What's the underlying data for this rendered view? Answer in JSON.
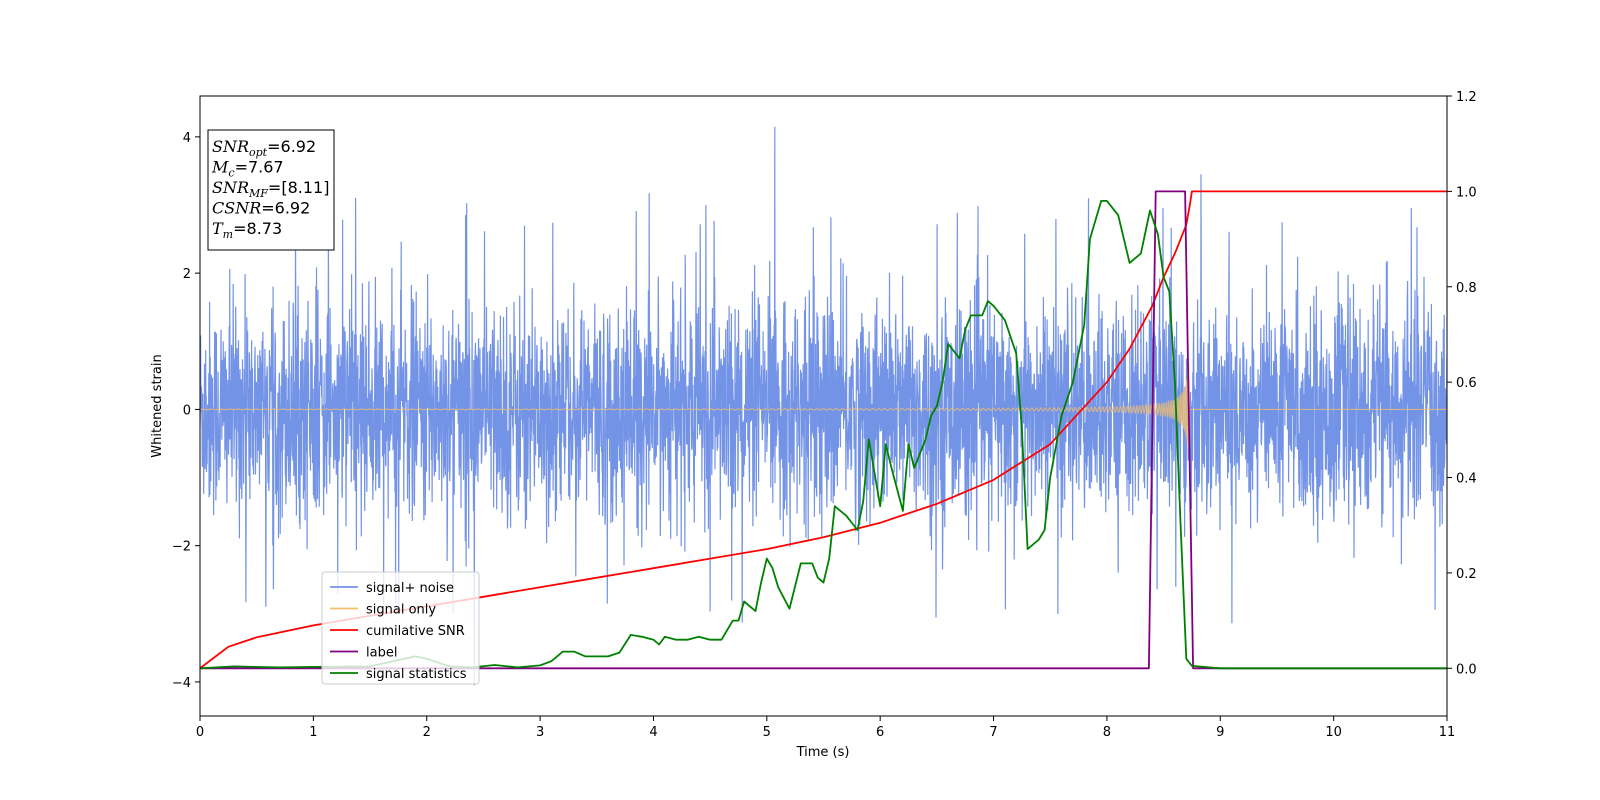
{
  "chart_data": {
    "type": "line",
    "title": "",
    "xlabel": "Time (s)",
    "ylabel": "Whitened strain",
    "y2label": "",
    "xlim": [
      0,
      11
    ],
    "ylim": [
      -4.5,
      4.6
    ],
    "y2lim": [
      -0.1,
      1.2
    ],
    "xticks": [
      "0",
      "1",
      "2",
      "3",
      "4",
      "5",
      "6",
      "7",
      "8",
      "9",
      "10",
      "11"
    ],
    "yticks": [
      "−4",
      "−2",
      "0",
      "2",
      "4"
    ],
    "y2ticks": [
      "0.0",
      "0.2",
      "0.4",
      "0.6",
      "0.8",
      "1.0",
      "1.2"
    ],
    "grid": false,
    "legend_position": "lower-left",
    "annotation_box": {
      "position": "upper-left",
      "lines": [
        {
          "sym": "SNR",
          "sub": "opt",
          "value": "=6.92"
        },
        {
          "sym": "M",
          "sub": "c",
          "value": "=7.67"
        },
        {
          "sym": "SNR",
          "sub": "MF",
          "value": "=[8.11]"
        },
        {
          "sym": "CSNR",
          "sub": "",
          "value": "=6.92"
        },
        {
          "sym": "T",
          "sub": "m",
          "value": "=8.73"
        }
      ]
    },
    "series": [
      {
        "name": "signal+ noise",
        "axis": "left",
        "color": "#7393e6",
        "kind": "noise",
        "envelope_typical": 2.0,
        "spike_max": 4.15,
        "spike_min": -4.05
      },
      {
        "name": "signal only",
        "axis": "left",
        "color": "#f5bf6b",
        "kind": "chirp",
        "merger_time": 8.73,
        "peak_amplitude": 0.7
      },
      {
        "name": "cumilative SNR",
        "axis": "right",
        "color": "#ff0000",
        "kind": "line",
        "x": [
          0,
          0.25,
          0.5,
          1,
          1.5,
          2,
          2.5,
          3,
          3.5,
          4,
          4.5,
          5,
          5.5,
          6,
          6.5,
          7,
          7.5,
          8,
          8.2,
          8.4,
          8.5,
          8.6,
          8.7,
          8.73,
          8.75,
          11
        ],
        "values": [
          0.0,
          0.045,
          0.065,
          0.09,
          0.11,
          0.13,
          0.15,
          0.17,
          0.19,
          0.21,
          0.23,
          0.25,
          0.275,
          0.305,
          0.345,
          0.395,
          0.47,
          0.6,
          0.67,
          0.76,
          0.82,
          0.87,
          0.93,
          0.97,
          1.0,
          1.0
        ]
      },
      {
        "name": "label",
        "axis": "right",
        "color": "#800080",
        "kind": "line",
        "x": [
          0,
          8.37,
          8.43,
          8.69,
          8.76,
          11
        ],
        "values": [
          0,
          0,
          1,
          1,
          0,
          0
        ]
      },
      {
        "name": "signal statistics",
        "axis": "right",
        "color": "#008000",
        "kind": "line",
        "x": [
          0,
          0.3,
          0.7,
          1.0,
          1.5,
          1.9,
          2.0,
          2.2,
          2.4,
          2.6,
          2.8,
          3.0,
          3.1,
          3.2,
          3.3,
          3.4,
          3.5,
          3.6,
          3.7,
          3.8,
          3.9,
          4.0,
          4.05,
          4.1,
          4.2,
          4.3,
          4.4,
          4.5,
          4.6,
          4.7,
          4.75,
          4.8,
          4.9,
          4.95,
          5.0,
          5.05,
          5.1,
          5.2,
          5.3,
          5.4,
          5.45,
          5.5,
          5.55,
          5.6,
          5.7,
          5.8,
          5.85,
          5.9,
          6.0,
          6.05,
          6.1,
          6.2,
          6.25,
          6.3,
          6.4,
          6.45,
          6.5,
          6.55,
          6.6,
          6.7,
          6.75,
          6.8,
          6.9,
          6.95,
          7.0,
          7.1,
          7.2,
          7.25,
          7.3,
          7.4,
          7.45,
          7.5,
          7.6,
          7.7,
          7.8,
          7.85,
          7.95,
          8.0,
          8.1,
          8.2,
          8.3,
          8.38,
          8.45,
          8.5,
          8.55,
          8.6,
          8.65,
          8.7,
          8.75,
          9.0,
          11
        ],
        "values": [
          0.0,
          0.004,
          0.002,
          0.003,
          0.004,
          0.025,
          0.02,
          0.004,
          0.002,
          0.007,
          0.002,
          0.006,
          0.015,
          0.035,
          0.035,
          0.025,
          0.025,
          0.025,
          0.033,
          0.07,
          0.066,
          0.06,
          0.05,
          0.066,
          0.06,
          0.06,
          0.066,
          0.06,
          0.06,
          0.1,
          0.1,
          0.14,
          0.12,
          0.18,
          0.23,
          0.21,
          0.17,
          0.125,
          0.22,
          0.22,
          0.19,
          0.18,
          0.23,
          0.34,
          0.32,
          0.29,
          0.35,
          0.48,
          0.34,
          0.47,
          0.42,
          0.33,
          0.47,
          0.42,
          0.48,
          0.53,
          0.55,
          0.6,
          0.68,
          0.65,
          0.71,
          0.74,
          0.74,
          0.77,
          0.76,
          0.73,
          0.66,
          0.5,
          0.25,
          0.27,
          0.29,
          0.4,
          0.53,
          0.6,
          0.72,
          0.9,
          0.98,
          0.98,
          0.95,
          0.85,
          0.87,
          0.96,
          0.91,
          0.82,
          0.79,
          0.6,
          0.3,
          0.02,
          0.005,
          0.0,
          0.0
        ]
      }
    ]
  }
}
